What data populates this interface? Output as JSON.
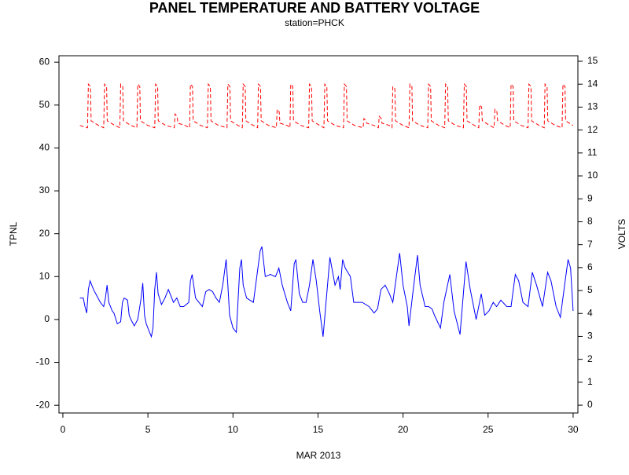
{
  "chart_data": {
    "type": "line",
    "title": "PANEL TEMPERATURE AND BATTERY VOLTAGE",
    "subtitle": "station=PHCK",
    "x_label": "MAR 2013",
    "y_label": "TPNL",
    "y2_label": "VOLTS",
    "xlim": [
      -0.23,
      30.28
    ],
    "xticks": [
      0,
      5,
      10,
      15,
      20,
      25,
      30
    ],
    "ylim": [
      -21.8,
      61.5
    ],
    "yticks": [
      -20,
      -10,
      0,
      10,
      20,
      30,
      40,
      50,
      60
    ],
    "y2lim": [
      -0.34,
      15.24
    ],
    "y2ticks": [
      0,
      1,
      2,
      3,
      4,
      5,
      6,
      7,
      8,
      9,
      10,
      11,
      12,
      13,
      14,
      15
    ],
    "series": [
      {
        "name": "TPNL",
        "color": "#0000ff",
        "dashed": false,
        "x": [
          1.0,
          1.2,
          1.3,
          1.4,
          1.5,
          1.6,
          1.8,
          2.0,
          2.2,
          2.4,
          2.5,
          2.6,
          2.7,
          2.9,
          3.0,
          3.2,
          3.4,
          3.5,
          3.6,
          3.8,
          3.9,
          4.0,
          4.2,
          4.4,
          4.6,
          4.7,
          4.8,
          4.9,
          5.0,
          5.1,
          5.2,
          5.3,
          5.4,
          5.5,
          5.6,
          5.8,
          6.0,
          6.2,
          6.3,
          6.5,
          6.7,
          6.9,
          7.1,
          7.4,
          7.5,
          7.6,
          7.8,
          8.0,
          8.2,
          8.4,
          8.6,
          8.8,
          9.0,
          9.2,
          9.4,
          9.6,
          9.7,
          9.8,
          10.0,
          10.2,
          10.4,
          10.5,
          10.6,
          10.8,
          11.0,
          11.2,
          11.4,
          11.6,
          11.7,
          11.9,
          12.2,
          12.5,
          12.7,
          12.9,
          13.2,
          13.4,
          13.6,
          13.7,
          13.9,
          14.1,
          14.3,
          14.5,
          14.7,
          14.9,
          15.1,
          15.3,
          15.7,
          16.0,
          16.2,
          16.3,
          16.45,
          16.6,
          16.9,
          17.1,
          17.6,
          18.0,
          18.3,
          18.5,
          18.7,
          18.95,
          19.2,
          19.4,
          19.8,
          20.0,
          20.25,
          20.35,
          20.6,
          20.85,
          21.0,
          21.3,
          21.5,
          21.7,
          21.85,
          22.2,
          22.4,
          22.75,
          23.0,
          23.35,
          23.7,
          23.95,
          24.3,
          24.6,
          24.8,
          25.05,
          25.3,
          25.5,
          25.75,
          26.1,
          26.35,
          26.6,
          26.8,
          27.05,
          27.35,
          27.6,
          27.85,
          28.2,
          28.5,
          28.7,
          29.0,
          29.25,
          29.5,
          29.7,
          29.85,
          30.0
        ],
        "values": [
          5,
          5,
          3,
          1.5,
          7,
          9,
          7,
          5.5,
          4,
          3,
          5,
          8,
          4,
          2,
          1.5,
          -1,
          -0.5,
          4,
          5,
          4.5,
          1,
          0,
          -1.5,
          0,
          5,
          8.5,
          1,
          -1,
          -2,
          -3,
          -4,
          -2,
          7,
          11,
          6,
          3.5,
          5,
          7,
          6,
          4,
          5,
          3,
          3,
          4,
          9,
          10.5,
          5,
          4,
          3,
          6.5,
          7,
          6.5,
          5,
          4,
          8,
          14,
          8,
          1,
          -2,
          -3,
          12,
          14,
          8,
          5,
          4.5,
          4,
          10,
          16,
          17,
          10,
          10.5,
          10,
          12,
          8,
          4,
          2,
          13,
          14,
          6,
          4,
          4,
          8,
          14,
          9,
          2,
          -4,
          14.5,
          8,
          10,
          7,
          14,
          12,
          10,
          4,
          4,
          3,
          1.5,
          2.5,
          7,
          8,
          6,
          4,
          15.5,
          8,
          3,
          -1.5,
          7,
          15,
          8,
          3,
          3,
          2.5,
          1,
          -2,
          4,
          10.5,
          2,
          -3.5,
          13.5,
          7,
          0,
          6,
          1,
          2,
          4,
          3,
          4.5,
          3,
          3,
          10.5,
          9,
          4,
          3,
          11,
          8,
          3,
          11,
          9,
          3,
          0.5,
          8,
          14,
          12,
          2
        ]
      },
      {
        "name": "VOLTS",
        "color": "#ff0000",
        "dashed": true,
        "axis": "y2",
        "x": [
          1.0,
          1.45,
          1.5,
          1.62,
          1.66,
          2.1,
          2.4,
          2.45,
          2.57,
          2.61,
          3.05,
          3.35,
          3.4,
          3.52,
          3.56,
          4.0,
          4.35,
          4.4,
          4.52,
          4.56,
          5.0,
          5.4,
          5.45,
          5.57,
          5.61,
          6.05,
          6.55,
          6.6,
          6.72,
          6.76,
          7.2,
          7.45,
          7.5,
          7.62,
          7.66,
          8.1,
          8.5,
          8.55,
          8.67,
          8.71,
          9.15,
          9.65,
          9.7,
          9.82,
          9.86,
          10.3,
          10.55,
          10.6,
          10.72,
          10.76,
          11.2,
          11.45,
          11.5,
          11.62,
          11.66,
          12.1,
          12.55,
          12.6,
          12.72,
          12.76,
          13.2,
          13.35,
          13.4,
          13.52,
          13.56,
          14.0,
          14.45,
          14.5,
          14.62,
          14.66,
          15.1,
          15.35,
          15.4,
          15.52,
          15.56,
          16.0,
          16.5,
          16.55,
          16.67,
          16.71,
          17.15,
          17.65,
          17.7,
          17.82,
          17.86,
          18.3,
          18.55,
          18.6,
          18.72,
          18.76,
          19.2,
          19.35,
          19.4,
          19.52,
          19.56,
          20.0,
          20.35,
          20.4,
          20.52,
          20.56,
          21.0,
          21.45,
          21.5,
          21.62,
          21.66,
          22.1,
          22.45,
          22.5,
          22.62,
          22.66,
          23.1,
          23.55,
          23.6,
          23.72,
          23.76,
          24.2,
          24.45,
          24.5,
          24.62,
          24.66,
          25.1,
          25.35,
          25.4,
          25.52,
          25.56,
          26.0,
          26.3,
          26.35,
          26.47,
          26.51,
          26.95,
          27.35,
          27.4,
          27.52,
          27.56,
          28.0,
          28.3,
          28.35,
          28.47,
          28.51,
          28.95,
          29.35,
          29.4,
          29.52,
          29.56,
          30.0
        ],
        "values": [
          12.2,
          12.1,
          14,
          13.9,
          12.4,
          12.2,
          12.1,
          14,
          13.9,
          12.4,
          12.2,
          12.1,
          14,
          13.9,
          12.4,
          12.2,
          12.1,
          14,
          13.9,
          12.4,
          12.2,
          12.1,
          14,
          13.9,
          12.4,
          12.2,
          12.1,
          12.7,
          12.6,
          12.3,
          12.2,
          12.1,
          14,
          13.9,
          12.4,
          12.2,
          12.1,
          14,
          13.9,
          12.4,
          12.2,
          12.1,
          14,
          13.9,
          12.4,
          12.2,
          12.1,
          14,
          13.9,
          12.4,
          12.2,
          12.1,
          14,
          13.9,
          12.4,
          12.2,
          12.1,
          12.9,
          12.8,
          12.3,
          12.2,
          12.1,
          14,
          13.9,
          12.4,
          12.2,
          12.1,
          14,
          13.9,
          12.4,
          12.2,
          12.1,
          14,
          13.9,
          12.4,
          12.2,
          12.1,
          14,
          13.9,
          12.4,
          12.2,
          12.1,
          12.5,
          12.4,
          12.3,
          12.2,
          12.1,
          12.6,
          12.5,
          12.3,
          12.2,
          12.1,
          13.9,
          13.8,
          12.4,
          12.2,
          12.1,
          14,
          13.9,
          12.4,
          12.2,
          12.1,
          14,
          13.9,
          12.4,
          12.2,
          12.1,
          14,
          13.9,
          12.4,
          12.2,
          12.1,
          14,
          13.9,
          12.4,
          12.2,
          12.1,
          13.1,
          13.0,
          12.4,
          12.2,
          12.1,
          12.9,
          12.8,
          12.4,
          12.2,
          12.1,
          14,
          13.9,
          12.4,
          12.2,
          12.1,
          14,
          13.9,
          12.4,
          12.2,
          12.1,
          14,
          13.9,
          12.4,
          12.2,
          12.1,
          14,
          13.9,
          12.4,
          12.2
        ]
      }
    ]
  }
}
